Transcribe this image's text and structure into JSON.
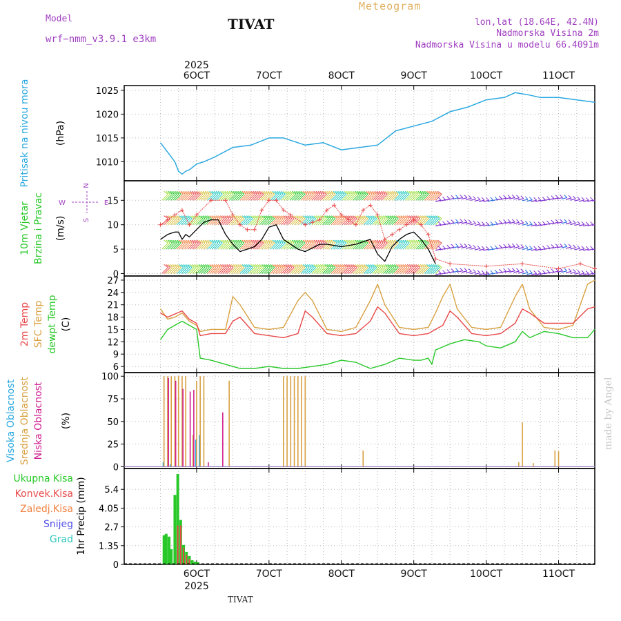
{
  "header": {
    "model_label": "Model",
    "model_name": "wrf−nmm_v3.9.1  e3km",
    "station": "TIVAT",
    "meteogram": "Meteogram",
    "lonlat": "lon,lat (18.64E, 42.4N)",
    "elevation": "Nadmorska Visina 2m",
    "model_elevation": "Nadmorska Visina u modelu 66.4091m",
    "footer_station": "TIVAT",
    "made_by": "made by Angel"
  },
  "colors": {
    "pressure": "#2aa8e0",
    "temp2m": "#e84848",
    "sfc": "#d8a040",
    "dewpt": "#28c828",
    "wind_black": "#000000",
    "gust": "#e84848",
    "high_cloud": "#28a8e0",
    "mid_cloud": "#d8a040",
    "low_cloud": "#d02090",
    "total_precip": "#28c828",
    "conv_precip": "#e84848"
  },
  "chart_data": [
    {
      "type": "line",
      "panel": "pressure",
      "ylabel": "Pritisak na nivou mora",
      "unit": "(hPa)",
      "ylim": [
        1006,
        1026
      ],
      "yticks": [
        "1010",
        "1015",
        "1020",
        "1025"
      ],
      "x_day_start": 5.0,
      "x_day_end": 11.5,
      "x_ticks": [
        "6OCT",
        "7OCT",
        "8OCT",
        "9OCT",
        "10OCT",
        "11OCT"
      ],
      "year": "2025",
      "series": [
        {
          "name": "Pressure",
          "x": [
            5.5,
            5.6,
            5.7,
            5.75,
            5.8,
            5.85,
            5.9,
            6.0,
            6.1,
            6.25,
            6.5,
            6.75,
            7.0,
            7.2,
            7.5,
            7.75,
            8.0,
            8.25,
            8.5,
            8.75,
            9.0,
            9.25,
            9.5,
            9.75,
            10.0,
            10.25,
            10.4,
            10.6,
            10.75,
            11.0,
            11.25,
            11.5
          ],
          "y": [
            1014,
            1012,
            1010,
            1008,
            1007.4,
            1008,
            1008.3,
            1009.5,
            1010,
            1011,
            1013,
            1013.5,
            1015,
            1015,
            1013.5,
            1014,
            1012.5,
            1013,
            1013.5,
            1016.5,
            1017.5,
            1018.5,
            1020.5,
            1021.5,
            1023,
            1023.5,
            1024.5,
            1024,
            1023.5,
            1023.5,
            1023,
            1022.5
          ]
        }
      ]
    },
    {
      "type": "line",
      "panel": "wind",
      "ylabel": "10m Vjetar Brzina i Pravac",
      "unit": "(m/s)",
      "ylim": [
        -0.5,
        19
      ],
      "yticks": [
        "0",
        "5",
        "10",
        "15"
      ],
      "compass": [
        "N",
        "W",
        "E",
        "S"
      ],
      "series": [
        {
          "name": "Wind speed",
          "x": [
            5.5,
            5.6,
            5.7,
            5.75,
            5.8,
            5.85,
            5.9,
            6.0,
            6.1,
            6.2,
            6.3,
            6.4,
            6.5,
            6.6,
            6.8,
            6.9,
            7.0,
            7.1,
            7.2,
            7.4,
            7.5,
            7.7,
            7.8,
            8.0,
            8.2,
            8.4,
            8.5,
            8.6,
            8.7,
            8.8,
            8.9,
            9.0,
            9.1,
            9.2,
            9.3
          ],
          "y": [
            7,
            8,
            8.5,
            8.5,
            7,
            8,
            7.5,
            9,
            10.5,
            11,
            11,
            8,
            6,
            4.5,
            5.5,
            7,
            9.5,
            10,
            7,
            5,
            4.5,
            6,
            6,
            5.5,
            6,
            7,
            4,
            2.5,
            5.5,
            7,
            8,
            8.5,
            7,
            5,
            2
          ]
        },
        {
          "name": "Gusts",
          "x": [
            5.5,
            5.6,
            5.7,
            5.8,
            5.9,
            6.0,
            6.2,
            6.4,
            6.5,
            6.6,
            6.7,
            6.8,
            6.9,
            7.0,
            7.1,
            7.2,
            7.3,
            7.5,
            7.6,
            7.7,
            7.8,
            7.9,
            8.0,
            8.1,
            8.2,
            8.3,
            8.4,
            8.5,
            8.6,
            8.7,
            8.8,
            8.9,
            9.0,
            9.1,
            9.2,
            9.3,
            9.5,
            10.0,
            10.5,
            11.0,
            11.3,
            11.5
          ],
          "y": [
            10,
            11,
            12,
            13,
            10,
            12,
            15,
            15,
            12,
            10,
            9,
            9,
            13,
            15,
            15,
            13,
            12,
            10,
            10.5,
            11,
            13,
            14,
            12,
            11,
            10,
            13,
            14,
            12,
            7,
            8,
            9,
            10,
            11,
            10,
            8,
            3,
            2,
            1.5,
            2,
            1,
            2,
            1
          ]
        }
      ],
      "barb_bands": [
        0,
        5,
        10,
        15
      ]
    },
    {
      "type": "line",
      "panel": "temperature",
      "ylabel_lines": [
        "2m Temp",
        "SFC Temp",
        "dewpt Temp"
      ],
      "unit": "(C)",
      "ylim": [
        4.5,
        28
      ],
      "yticks": [
        "6",
        "9",
        "12",
        "15",
        "18",
        "21",
        "24",
        "27"
      ],
      "series": [
        {
          "name": "SFC Temp",
          "x": [
            5.5,
            5.6,
            5.7,
            5.8,
            5.9,
            6.0,
            6.05,
            6.2,
            6.4,
            6.5,
            6.6,
            6.8,
            7.0,
            7.2,
            7.4,
            7.5,
            7.6,
            7.8,
            8.0,
            8.2,
            8.4,
            8.5,
            8.6,
            8.8,
            9.0,
            9.2,
            9.3,
            9.4,
            9.5,
            9.6,
            9.8,
            10.0,
            10.2,
            10.4,
            10.5,
            10.6,
            10.8,
            11.0,
            11.2,
            11.4,
            11.5
          ],
          "y": [
            20,
            17.5,
            18,
            19,
            17,
            16,
            14.5,
            15,
            15,
            23,
            21,
            15.5,
            15,
            15.5,
            22,
            24,
            22,
            15,
            14.5,
            15.5,
            22,
            26,
            21,
            15.5,
            15,
            15.5,
            19,
            23,
            26,
            20,
            15.5,
            15,
            15.5,
            23,
            26,
            20,
            15.5,
            15,
            16,
            26,
            27
          ]
        },
        {
          "name": "2m Temp",
          "x": [
            5.5,
            5.6,
            5.8,
            5.9,
            6.0,
            6.05,
            6.2,
            6.4,
            6.5,
            6.6,
            6.8,
            7.0,
            7.2,
            7.4,
            7.5,
            7.6,
            7.8,
            8.0,
            8.2,
            8.4,
            8.5,
            8.6,
            8.8,
            9.0,
            9.2,
            9.4,
            9.5,
            9.6,
            9.8,
            10.0,
            10.2,
            10.4,
            10.5,
            10.6,
            10.8,
            11.0,
            11.2,
            11.4,
            11.5
          ],
          "y": [
            19,
            18,
            19.5,
            17.5,
            16.5,
            13.5,
            14,
            14,
            17,
            18,
            14,
            13.5,
            13,
            14,
            19.5,
            18,
            14,
            13.5,
            14,
            17,
            20.5,
            19,
            14,
            13.5,
            14,
            16,
            19.5,
            18,
            14,
            13.5,
            14,
            16.5,
            20,
            19,
            16.5,
            16.5,
            16.5,
            20,
            20.5
          ]
        },
        {
          "name": "dewpt Temp",
          "x": [
            5.5,
            5.6,
            5.8,
            5.9,
            6.0,
            6.05,
            6.2,
            6.4,
            6.5,
            6.6,
            6.8,
            7.0,
            7.2,
            7.4,
            7.6,
            7.8,
            8.0,
            8.2,
            8.4,
            8.6,
            8.8,
            9.0,
            9.1,
            9.2,
            9.25,
            9.3,
            9.5,
            9.7,
            9.9,
            10.0,
            10.2,
            10.4,
            10.5,
            10.6,
            10.8,
            11.0,
            11.2,
            11.4,
            11.5
          ],
          "y": [
            12.5,
            15,
            17,
            16,
            15,
            8,
            7.5,
            6.5,
            6,
            5.5,
            5.5,
            6,
            5.5,
            5.5,
            6,
            6.5,
            7.5,
            7,
            5.5,
            6.5,
            8,
            7.5,
            7.5,
            8,
            6.5,
            10,
            11.5,
            12.5,
            12,
            11,
            10.5,
            12,
            14.5,
            13,
            14.5,
            14,
            13,
            13,
            15
          ]
        }
      ]
    },
    {
      "type": "bar",
      "panel": "cloud",
      "ylabel_lines": [
        "Visoka Oblacnost",
        "Srednja Oblacnost",
        "Niska Oblacnost"
      ],
      "unit": "(%)",
      "ylim": [
        -2,
        104
      ],
      "yticks": [
        "0",
        "25",
        "50",
        "75",
        "100"
      ],
      "series": [
        {
          "name": "Visoka Oblacnost",
          "x": [
            5.55,
            5.65,
            6.0,
            6.05
          ],
          "values": [
            5,
            3,
            30,
            35
          ]
        },
        {
          "name": "Srednja Oblacnost",
          "x": [
            5.55,
            5.6,
            5.65,
            5.7,
            5.75,
            5.8,
            5.85,
            5.95,
            6.0,
            6.05,
            6.1,
            6.45,
            7.2,
            7.25,
            7.3,
            7.35,
            7.4,
            7.45,
            7.5,
            8.3,
            10.45,
            10.5,
            10.65,
            10.95,
            11.0
          ],
          "values": [
            100,
            100,
            100,
            100,
            100,
            100,
            100,
            35,
            95,
            100,
            100,
            95,
            100,
            100,
            100,
            100,
            100,
            100,
            100,
            18,
            5,
            49,
            4,
            18,
            17
          ]
        },
        {
          "name": "Niska Oblacnost",
          "x": [
            5.6,
            5.7,
            5.8,
            5.9,
            5.95,
            6.15,
            6.35
          ],
          "values": [
            98,
            95,
            86,
            83,
            85,
            5,
            60
          ]
        }
      ]
    },
    {
      "type": "bar",
      "panel": "precip",
      "ylabel": "1hr Precip",
      "unit": "(mm)",
      "ylim": [
        0,
        6.9
      ],
      "yticks": [
        "0",
        "1.35",
        "2.7",
        "4.05",
        "5.4"
      ],
      "legend": [
        "Ukupna Kisa",
        "Konvek.Kisa",
        "Zaledj.Kisa",
        "Snijeg",
        "Grad"
      ],
      "legend_colors": [
        "#28c828",
        "#e84848",
        "#f08040",
        "#5050e8",
        "#30c8c0"
      ],
      "series": [
        {
          "name": "Ukupna Kisa",
          "x": [
            5.55,
            5.58,
            5.62,
            5.65,
            5.7,
            5.74,
            5.78,
            5.82,
            5.86,
            5.9,
            5.94,
            5.98,
            6.02
          ],
          "values": [
            2.1,
            2.2,
            2.0,
            1.1,
            5.0,
            6.5,
            3.2,
            1.4,
            0.9,
            0.6,
            0.3,
            0.2,
            0.15
          ]
        },
        {
          "name": "Konvek.Kisa",
          "x": [
            5.74,
            5.78,
            5.82,
            5.86,
            5.9
          ],
          "values": [
            2.8,
            2.8,
            1.2,
            0.7,
            0.4
          ]
        }
      ]
    }
  ]
}
